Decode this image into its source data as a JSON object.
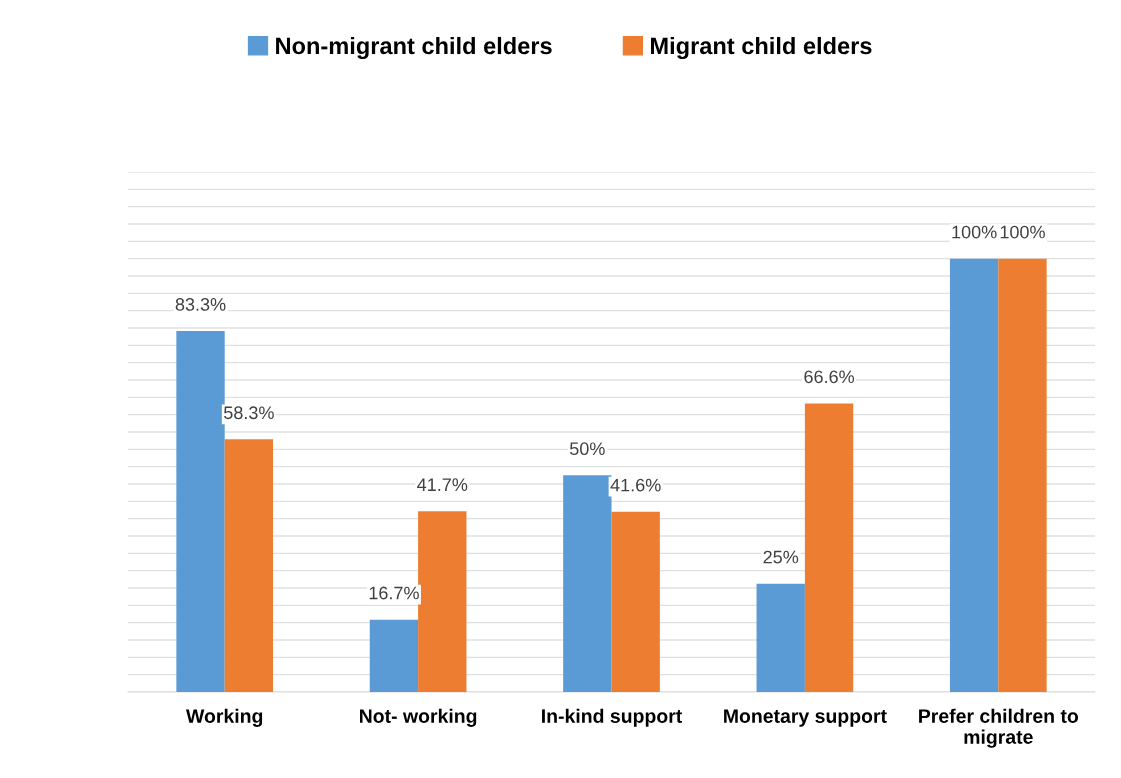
{
  "chart_data": {
    "type": "bar",
    "categories": [
      "Working",
      "Not- working",
      "In-kind support",
      "Monetary support",
      "Prefer children to\nmigrate"
    ],
    "series": [
      {
        "name": "Non-migrant child elders",
        "color": "#5b9bd5",
        "values": [
          83.3,
          16.7,
          50,
          25,
          100
        ],
        "value_labels": [
          "83.3%",
          "16.7%",
          "50%",
          "25%",
          "100%"
        ]
      },
      {
        "name": "Migrant child elders",
        "color": "#ed7d31",
        "values": [
          58.3,
          41.7,
          41.6,
          66.6,
          100
        ],
        "value_labels": [
          "58.3%",
          "41.7%",
          "41.6%",
          "66.6%",
          "100%"
        ]
      }
    ],
    "ylim": [
      0,
      120
    ],
    "yticks": [
      {
        "value": 0,
        "label": null
      },
      {
        "value": 4,
        "label": null
      },
      {
        "value": 8,
        "label": null
      },
      {
        "value": 12,
        "label": null
      },
      {
        "value": 16,
        "label": null
      },
      {
        "value": 20,
        "label": null
      },
      {
        "value": 24,
        "label": null
      },
      {
        "value": 28,
        "label": null
      },
      {
        "value": 32,
        "label": null
      },
      {
        "value": 36,
        "label": null
      },
      {
        "value": 40,
        "label": null
      },
      {
        "value": 44,
        "label": null
      },
      {
        "value": 48,
        "label": null
      },
      {
        "value": 52,
        "label": null
      },
      {
        "value": 56,
        "label": null
      },
      {
        "value": 60,
        "label": null
      },
      {
        "value": 64,
        "label": null
      },
      {
        "value": 68,
        "label": null
      },
      {
        "value": 72,
        "label": null
      },
      {
        "value": 76,
        "label": null
      },
      {
        "value": 80,
        "label": null
      },
      {
        "value": 84,
        "label": null
      },
      {
        "value": 88,
        "label": null
      },
      {
        "value": 92,
        "label": null
      },
      {
        "value": 96,
        "label": null
      },
      {
        "value": 100,
        "label": null
      },
      {
        "value": 104,
        "label": null
      },
      {
        "value": 108,
        "label": null
      },
      {
        "value": 112,
        "label": null
      },
      {
        "value": 116,
        "label": null
      },
      {
        "value": 120,
        "label": null
      }
    ],
    "grid": "y",
    "legend": "top",
    "tick_labels": "x"
  }
}
